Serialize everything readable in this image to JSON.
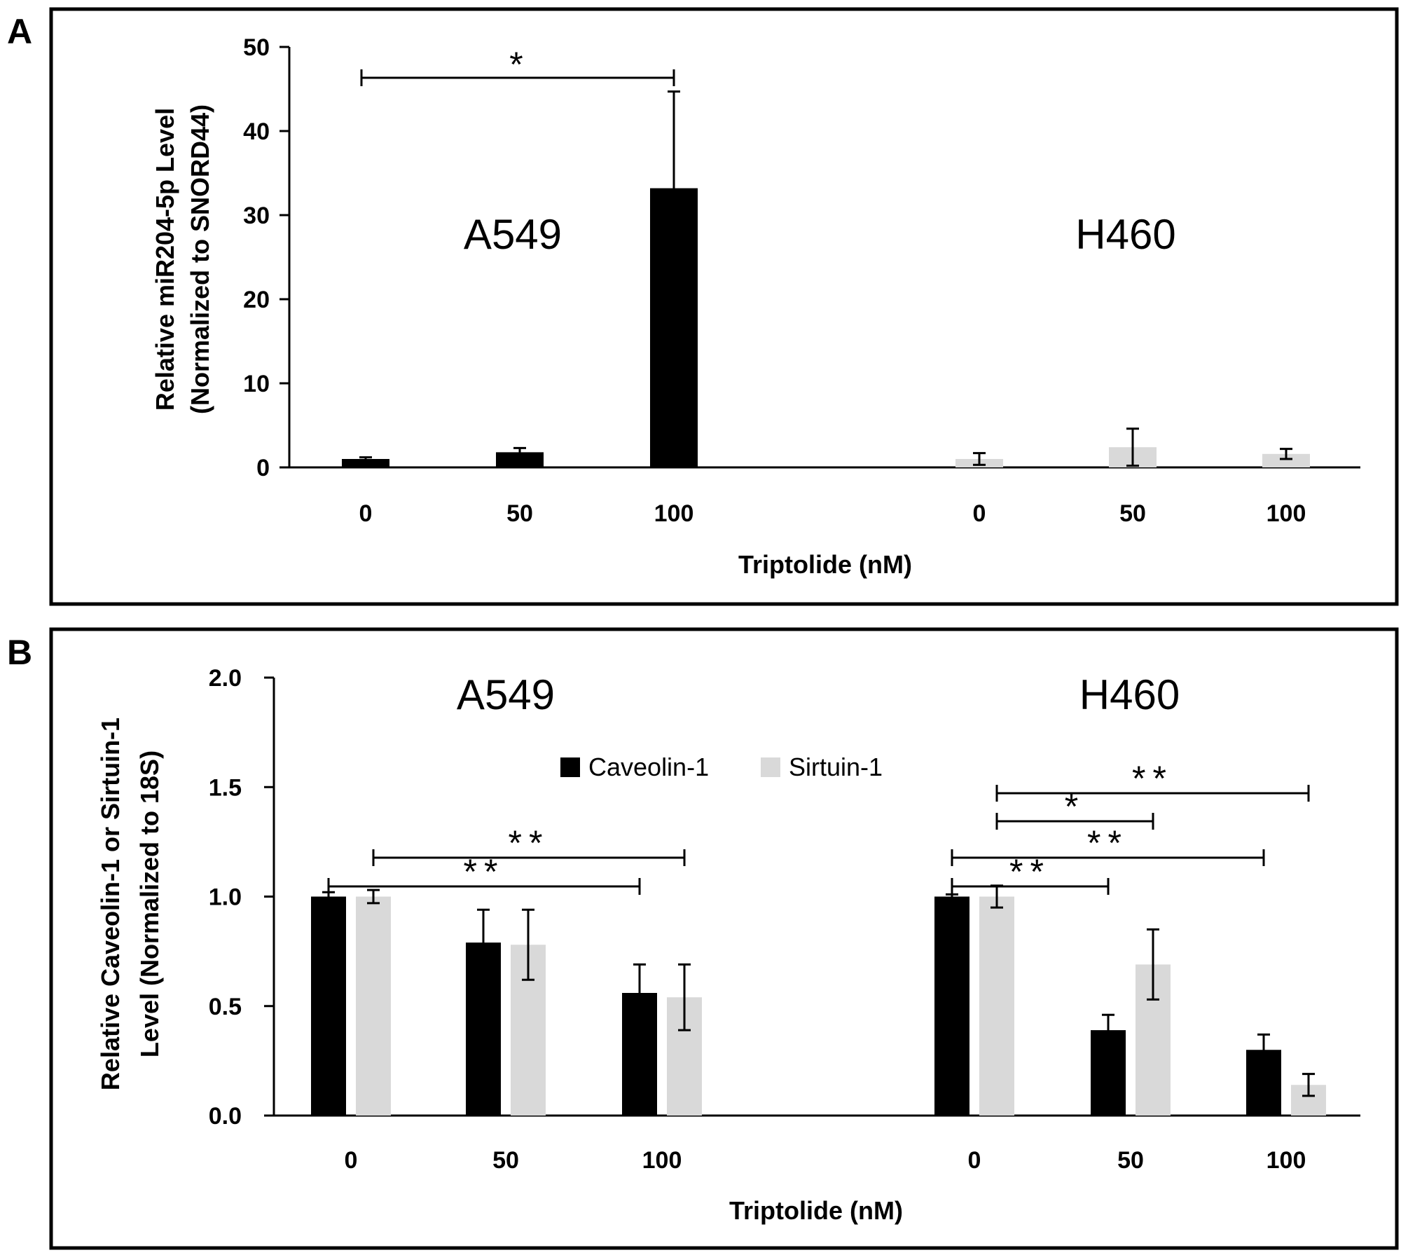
{
  "panels": {
    "a": {
      "letter": "A"
    },
    "b": {
      "letter": "B"
    }
  },
  "chart_data": [
    {
      "type": "bar",
      "panel": "A",
      "xlabel": "Triptolide (nM)",
      "ylabel": [
        "Relative miR204-5p Level",
        "(Normalized to SNORD44)"
      ],
      "ylim": [
        0,
        50
      ],
      "yticks": [
        0,
        10,
        20,
        30,
        40,
        50
      ],
      "groups": [
        {
          "label": "A549",
          "categories": [
            "0",
            "50",
            "100"
          ],
          "color": "#000000",
          "values": [
            1.0,
            1.8,
            33.2
          ],
          "errors": [
            0.2,
            0.5,
            11.5
          ]
        },
        {
          "label": "H460",
          "categories": [
            "0",
            "50",
            "100"
          ],
          "color": "#d9d9d9",
          "values": [
            1.0,
            2.4,
            1.6
          ],
          "errors": [
            0.7,
            2.2,
            0.6
          ]
        }
      ],
      "significance": [
        {
          "group": 0,
          "from": 0,
          "to": 2,
          "label": "*"
        }
      ]
    },
    {
      "type": "bar",
      "panel": "B",
      "xlabel": "Triptolide (nM)",
      "ylabel": [
        "Relative Caveolin-1 or Sirtuin-1",
        "Level (Normalized to 18S)"
      ],
      "ylim": [
        0,
        2
      ],
      "yticks": [
        "0.0",
        "0.5",
        "1.0",
        "1.5",
        "2.0"
      ],
      "series": [
        {
          "name": "Caveolin-1",
          "color": "#000000"
        },
        {
          "name": "Sirtuin-1",
          "color": "#d9d9d9"
        }
      ],
      "groups": [
        {
          "label": "A549",
          "categories": [
            "0",
            "50",
            "100"
          ],
          "values": [
            [
              1.0,
              1.0
            ],
            [
              0.79,
              0.78
            ],
            [
              0.56,
              0.54
            ]
          ],
          "errors": [
            [
              0.02,
              0.03
            ],
            [
              0.15,
              0.16
            ],
            [
              0.13,
              0.15
            ]
          ]
        },
        {
          "label": "H460",
          "categories": [
            "0",
            "50",
            "100"
          ],
          "values": [
            [
              1.0,
              1.0
            ],
            [
              0.39,
              0.69
            ],
            [
              0.3,
              0.14
            ]
          ],
          "errors": [
            [
              0.01,
              0.05
            ],
            [
              0.07,
              0.16
            ],
            [
              0.07,
              0.05
            ]
          ]
        }
      ],
      "significance": [
        {
          "group": 0,
          "from": [
            0,
            1
          ],
          "to": [
            2,
            1
          ],
          "label": "**",
          "level": 1
        },
        {
          "group": 0,
          "from": [
            0,
            0
          ],
          "to": [
            2,
            0
          ],
          "label": "**",
          "level": 0
        },
        {
          "group": 1,
          "from": [
            0,
            1
          ],
          "to": [
            2,
            1
          ],
          "label": "**",
          "level": 3
        },
        {
          "group": 1,
          "from": [
            0,
            1
          ],
          "to": [
            1,
            1
          ],
          "label": "*",
          "level": 2
        },
        {
          "group": 1,
          "from": [
            0,
            0
          ],
          "to": [
            2,
            0
          ],
          "label": "**",
          "level": 1
        },
        {
          "group": 1,
          "from": [
            0,
            0
          ],
          "to": [
            1,
            0
          ],
          "label": "**",
          "level": 0
        }
      ]
    }
  ]
}
